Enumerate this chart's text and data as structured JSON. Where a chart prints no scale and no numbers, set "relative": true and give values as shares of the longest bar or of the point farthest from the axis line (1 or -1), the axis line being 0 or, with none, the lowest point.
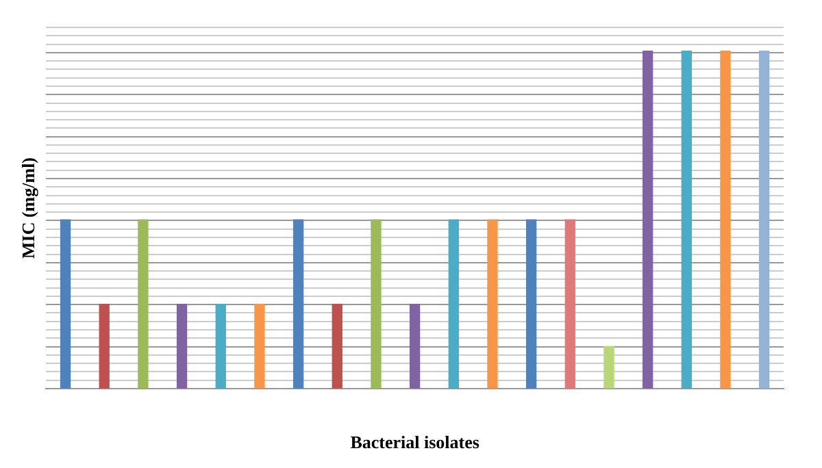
{
  "chart_data": {
    "type": "bar",
    "relative": true,
    "xlabel": "Bacterial isolates",
    "ylabel": "MIC (mg/ml)",
    "grid": true,
    "categories": [
      null,
      null,
      null,
      null,
      null,
      null,
      null,
      null,
      null,
      null,
      null,
      null,
      null,
      null,
      null,
      null,
      null,
      null,
      null
    ],
    "values": [
      0.5,
      0.25,
      0.5,
      0.25,
      0.25,
      0.25,
      0.5,
      0.25,
      0.5,
      0.25,
      0.5,
      0.5,
      0.5,
      0.5,
      0.125,
      1,
      1,
      1,
      1
    ],
    "colors": [
      "#4f81bd",
      "#c0504d",
      "#9bbb59",
      "#8064a2",
      "#4bacc6",
      "#f79646",
      "#4f81bd",
      "#c0504d",
      "#9bbb59",
      "#8064a2",
      "#4bacc6",
      "#f79646",
      "#4f81bd",
      "#e07a78",
      "#b8d67a",
      "#8064a2",
      "#4bacc6",
      "#f79646",
      "#95b3d7"
    ]
  }
}
